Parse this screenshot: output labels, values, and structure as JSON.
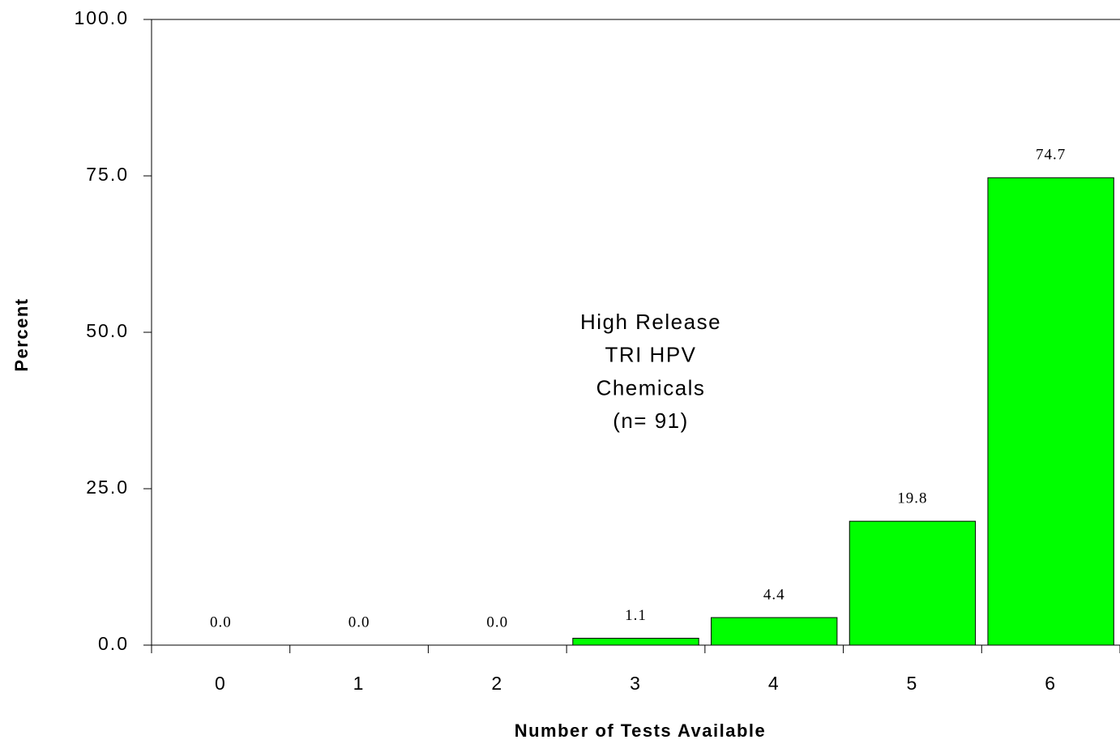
{
  "chart_data": {
    "type": "bar",
    "categories": [
      "0",
      "1",
      "2",
      "3",
      "4",
      "5",
      "6"
    ],
    "values": [
      0,
      0,
      0,
      1.1,
      4.4,
      19.8,
      74.7
    ],
    "value_labels": [
      "0.0",
      "0.0",
      "0.0",
      "1.1",
      "4.4",
      "19.8",
      "74.7"
    ],
    "color": "#00ff00",
    "x_label": "Number of Tests Available",
    "y_label": "Percent",
    "annotation": [
      "High Release",
      "TRI HPV",
      "Chemicals",
      "(n= 91)"
    ],
    "ylim": [
      0,
      100
    ],
    "yticks": [
      {
        "value": 0,
        "label": "0.0"
      },
      {
        "value": 25,
        "label": "25.0"
      },
      {
        "value": 50,
        "label": "50.0"
      },
      {
        "value": 75,
        "label": "75.0"
      },
      {
        "value": 100,
        "label": "100.0"
      }
    ],
    "grid": false
  }
}
